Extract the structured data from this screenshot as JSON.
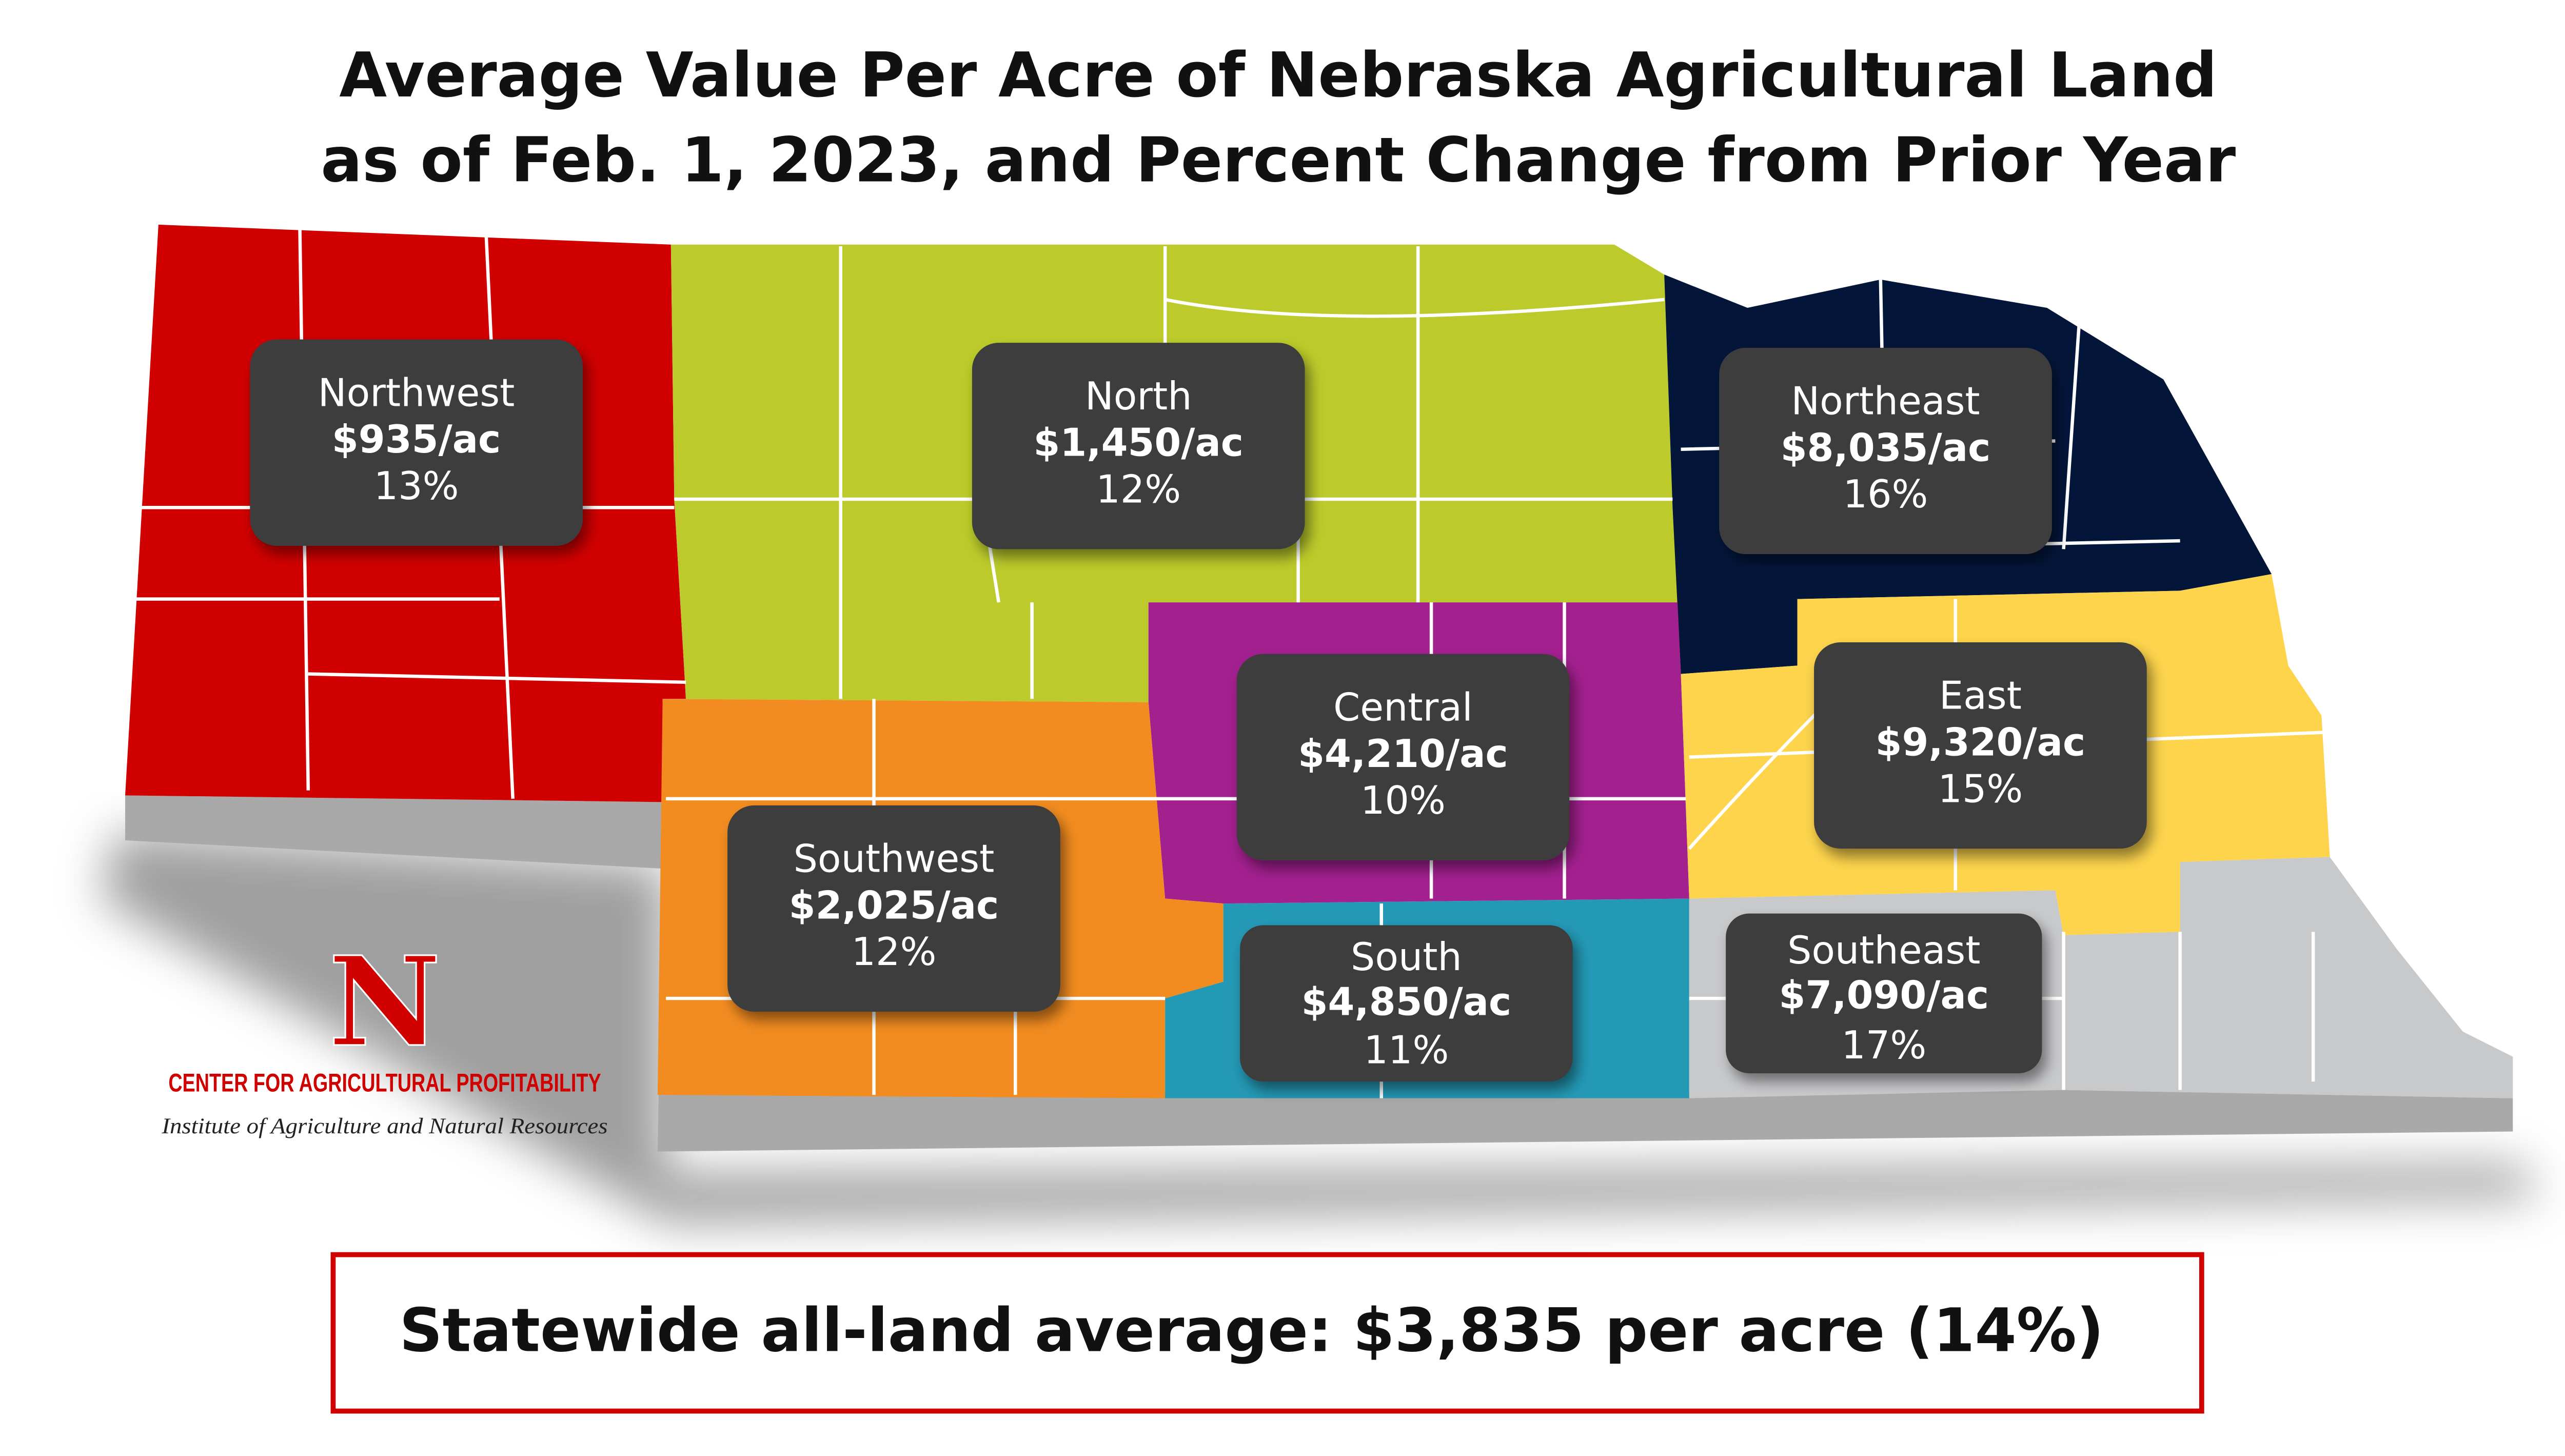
{
  "title": {
    "line1": "Average Value Per Acre of Nebraska Agricultural Land",
    "line2": "as of Feb. 1, 2023, and Percent Change from Prior Year"
  },
  "regions": [
    {
      "name": "Northwest",
      "value": "$935/ac",
      "change": "13%",
      "color": "#d00000"
    },
    {
      "name": "North",
      "value": "$1,450/ac",
      "change": "12%",
      "color": "#bccb2b"
    },
    {
      "name": "Northeast",
      "value": "$8,035/ac",
      "change": "16%",
      "color": "#03163a"
    },
    {
      "name": "Central",
      "value": "$4,210/ac",
      "change": "10%",
      "color": "#a3208f"
    },
    {
      "name": "East",
      "value": "$9,320/ac",
      "change": "15%",
      "color": "#fdd44c"
    },
    {
      "name": "Southwest",
      "value": "$2,025/ac",
      "change": "12%",
      "color": "#f28c20"
    },
    {
      "name": "South",
      "value": "$4,850/ac",
      "change": "11%",
      "color": "#2499b5"
    },
    {
      "name": "Southeast",
      "value": "$7,090/ac",
      "change": "17%",
      "color": "#c8c9cb"
    }
  ],
  "logo": {
    "letter": "N",
    "center": "CENTER FOR AGRICULTURAL PROFITABILITY",
    "institute": "Institute of Agriculture and Natural Resources"
  },
  "statewide": "Statewide all-land average: $3,835 per acre (14%)",
  "colors": {
    "label_box": "#3d3d3d",
    "statewide_border": "#d00000"
  }
}
